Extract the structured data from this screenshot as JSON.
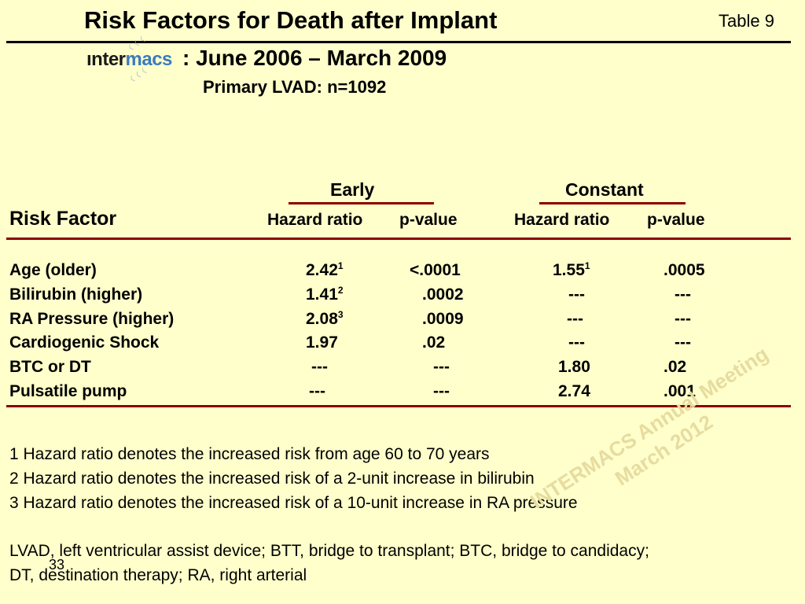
{
  "header": {
    "title": "Risk Factors for Death after Implant",
    "table_label": "Table 9",
    "logo_part1": "ınter",
    "logo_part2": "macs",
    "subtitle": ": June 2006 – March 2009",
    "subtitle2": "Primary LVAD: n=1092"
  },
  "table": {
    "groups": [
      "Early",
      "Constant"
    ],
    "risk_factor_header": "Risk Factor",
    "col_headers": [
      "Hazard ratio",
      "p-value",
      "Hazard ratio",
      "p-value"
    ],
    "rows": [
      {
        "factor": "Age (older)",
        "e_hr": "2.42",
        "e_hr_sup": "1",
        "e_p": "<.0001",
        "c_hr": "1.55",
        "c_hr_sup": "1",
        "c_p": ".0005"
      },
      {
        "factor": "Bilirubin (higher)",
        "e_hr": "1.41",
        "e_hr_sup": "2",
        "e_p": ".0002",
        "c_hr": "---",
        "c_hr_sup": "",
        "c_p": "---"
      },
      {
        "factor": "RA Pressure (higher)",
        "e_hr": "2.08",
        "e_hr_sup": "3",
        "e_p": ".0009",
        "c_hr": "---",
        "c_hr_sup": "",
        "c_p": "---"
      },
      {
        "factor": "Cardiogenic Shock",
        "e_hr": "1.97",
        "e_hr_sup": "",
        "e_p": ".02",
        "c_hr": "---",
        "c_hr_sup": "",
        "c_p": "---"
      },
      {
        "factor": "BTC or DT",
        "e_hr": "---",
        "e_hr_sup": "",
        "e_p": "---",
        "c_hr": "1.80",
        "c_hr_sup": "",
        "c_p": ".02"
      },
      {
        "factor": "Pulsatile pump",
        "e_hr": "---",
        "e_hr_sup": "",
        "e_p": "---",
        "c_hr": "2.74",
        "c_hr_sup": "",
        "c_p": ".001"
      }
    ]
  },
  "footnotes": [
    "1  Hazard ratio denotes the increased risk from age 60 to 70 years",
    "2  Hazard ratio denotes the increased risk of a 2-unit increase in bilirubin",
    "3  Hazard ratio denotes the increased risk of a 10-unit increase in RA pressure"
  ],
  "abbreviations": [
    "LVAD, left ventricular assist device; BTT, bridge to transplant; BTC, bridge to candidacy;",
    "DT, destination therapy; RA, right arterial"
  ],
  "page_number": "33",
  "watermark": [
    "INTERMACS Annual Meeting",
    "March 2012"
  ],
  "colors": {
    "background": "#FFFFCC",
    "rule_red": "#8B0000",
    "logo_blue": "#3a7bbf"
  }
}
